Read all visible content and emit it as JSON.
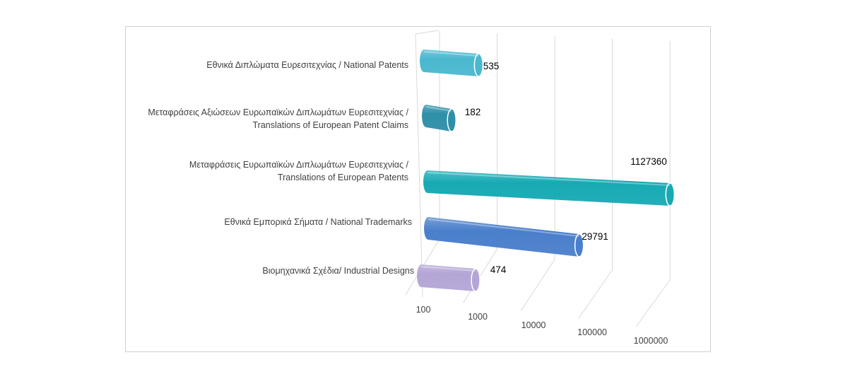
{
  "chart_data": {
    "type": "bar",
    "orientation": "horizontal",
    "scale": "log",
    "xlim": [
      100,
      1000000
    ],
    "ticks": [
      "100",
      "1000",
      "10000",
      "100000",
      "1000000"
    ],
    "grid": true,
    "legend": "none",
    "categories": [
      {
        "line1": "Εθνικά Διπλώματα Ευρεσιτεχνίας / National Patents",
        "line2": ""
      },
      {
        "line1": "Μεταφράσεις Αξιώσεων Ευρωπαϊκών Διπλωμάτων Ευρεσιτεχνίας /",
        "line2": "Translations of European Patent Claims"
      },
      {
        "line1": "Μεταφράσεις Ευρωπαϊκών Διπλωμάτων Ευρεσιτεχνίας /",
        "line2": "Translations of European Patents"
      },
      {
        "line1": "Εθνικά Εμπορικά Σήματα / National Trademarks",
        "line2": ""
      },
      {
        "line1": "Βιομηχανικά Σχέδια/ Industrial Designs",
        "line2": ""
      }
    ],
    "values": [
      535,
      182,
      1127360,
      29791,
      474
    ],
    "value_labels": [
      "535",
      "182",
      "1127360",
      "29791",
      "474"
    ],
    "colors": [
      "#4ab8cf",
      "#2f8fa8",
      "#17aab4",
      "#4a7fcb",
      "#b4a5d6"
    ]
  }
}
